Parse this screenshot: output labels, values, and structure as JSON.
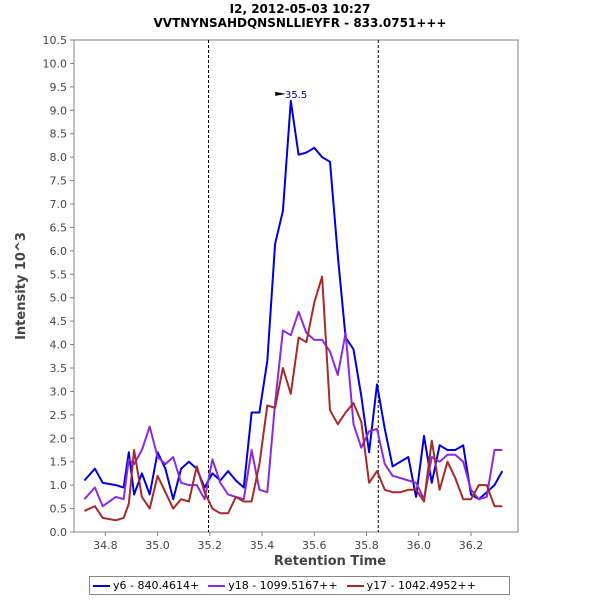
{
  "chart_data": {
    "type": "line",
    "title": "I2, 2012-05-03 10:27",
    "subtitle": "VVTNYNSAHDQNSNLLIEYFR - 833.0751+++",
    "xlabel": "Retention Time",
    "ylabel": "Intensity 10^3",
    "xlim": [
      34.68,
      36.38
    ],
    "ylim": [
      0.0,
      10.5
    ],
    "x_ticks": [
      "34.8",
      "35.0",
      "35.2",
      "35.4",
      "35.6",
      "35.8",
      "36.0",
      "36.2"
    ],
    "y_ticks": [
      "0.0",
      "0.5",
      "1.0",
      "1.5",
      "2.0",
      "2.5",
      "3.0",
      "3.5",
      "4.0",
      "4.5",
      "5.0",
      "5.5",
      "6.0",
      "6.5",
      "7.0",
      "7.5",
      "8.0",
      "8.5",
      "9.0",
      "9.5",
      "10.0",
      "10.5"
    ],
    "vlines": [
      35.195,
      35.845
    ],
    "annotation": {
      "label": "35.5",
      "x": 35.5,
      "y": 9.2
    },
    "x": [
      34.72,
      34.76,
      34.79,
      34.84,
      34.87,
      34.89,
      34.91,
      34.94,
      34.97,
      35.0,
      35.03,
      35.06,
      35.09,
      35.12,
      35.15,
      35.18,
      35.21,
      35.24,
      35.27,
      35.3,
      35.33,
      35.36,
      35.39,
      35.42,
      35.45,
      35.48,
      35.51,
      35.54,
      35.57,
      35.6,
      35.63,
      35.66,
      35.69,
      35.72,
      35.75,
      35.78,
      35.81,
      35.84,
      35.87,
      35.9,
      35.93,
      35.96,
      35.99,
      36.02,
      36.05,
      36.08,
      36.11,
      36.14,
      36.17,
      36.2,
      36.23,
      36.26,
      36.29,
      36.32
    ],
    "series": [
      {
        "name": "y6 - 840.4614+",
        "color": "#0000dd",
        "values": [
          1.1,
          1.35,
          1.05,
          1.0,
          0.95,
          1.7,
          0.8,
          1.25,
          0.8,
          1.7,
          1.35,
          0.7,
          1.35,
          1.5,
          1.35,
          0.95,
          1.25,
          1.1,
          1.3,
          1.1,
          0.95,
          2.55,
          2.55,
          3.65,
          6.15,
          6.85,
          9.2,
          8.05,
          8.1,
          8.2,
          8.0,
          7.9,
          5.9,
          4.15,
          3.9,
          2.9,
          1.7,
          3.15,
          2.2,
          1.4,
          1.5,
          1.6,
          0.75,
          2.05,
          1.05,
          1.85,
          1.75,
          1.75,
          1.85,
          0.8,
          0.7,
          0.85,
          1.0,
          1.3
        ]
      },
      {
        "name": "y18 - 1099.5167++",
        "color": "#8a2be2",
        "values": [
          0.7,
          0.95,
          0.55,
          0.75,
          0.7,
          1.55,
          1.45,
          1.75,
          2.25,
          1.6,
          1.45,
          1.6,
          1.05,
          1.0,
          1.0,
          0.7,
          1.55,
          1.05,
          0.8,
          0.75,
          0.7,
          1.75,
          0.9,
          0.85,
          2.75,
          4.3,
          4.2,
          4.7,
          4.25,
          4.1,
          4.1,
          3.85,
          3.35,
          4.25,
          2.3,
          1.8,
          2.15,
          2.2,
          1.45,
          1.2,
          1.15,
          1.1,
          1.05,
          0.7,
          1.6,
          1.5,
          1.65,
          1.65,
          1.5,
          0.9,
          0.7,
          0.75,
          1.75,
          1.75
        ]
      },
      {
        "name": "y17 - 1042.4952++",
        "color": "#a52a2a",
        "values": [
          0.45,
          0.55,
          0.3,
          0.25,
          0.3,
          0.6,
          1.75,
          0.75,
          0.5,
          1.2,
          0.85,
          0.5,
          0.7,
          0.65,
          1.4,
          0.85,
          0.5,
          0.4,
          0.4,
          0.75,
          0.65,
          0.65,
          1.45,
          2.7,
          2.65,
          3.5,
          2.95,
          4.15,
          4.05,
          4.9,
          5.45,
          2.6,
          2.3,
          2.55,
          2.75,
          2.35,
          1.05,
          1.3,
          0.9,
          0.85,
          0.85,
          0.9,
          0.9,
          0.65,
          1.95,
          0.9,
          1.5,
          1.15,
          0.7,
          0.7,
          1.0,
          1.0,
          0.55,
          0.55
        ]
      }
    ],
    "grid": false,
    "legend": "bottom"
  }
}
